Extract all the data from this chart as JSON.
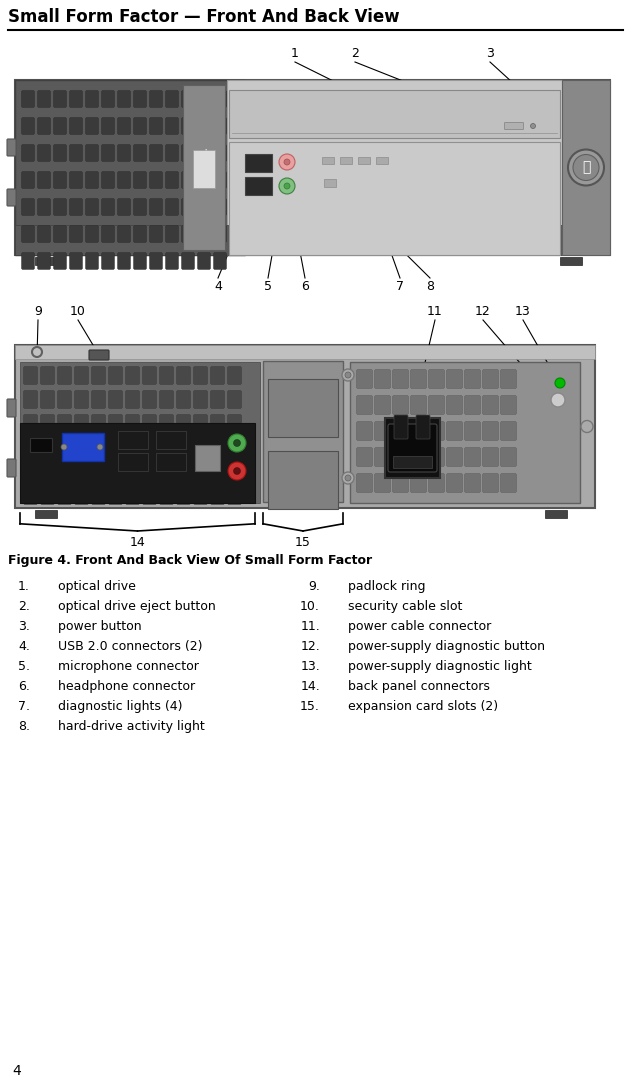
{
  "title": "Small Form Factor — Front And Back View",
  "title_fontsize": 12,
  "figure_caption": "Figure 4. Front And Back View Of Small Form Factor",
  "figure_caption_fontsize": 9,
  "page_number": "4",
  "list_items_left": [
    [
      "1.",
      "optical drive"
    ],
    [
      "2.",
      "optical drive eject button"
    ],
    [
      "3.",
      "power button"
    ],
    [
      "4.",
      "USB 2.0 connectors (2)"
    ],
    [
      "5.",
      "microphone connector"
    ],
    [
      "6.",
      "headphone connector"
    ],
    [
      "7.",
      "diagnostic lights (4)"
    ],
    [
      "8.",
      "hard-drive activity light"
    ]
  ],
  "list_items_right": [
    [
      "9.",
      "padlock ring"
    ],
    [
      "10.",
      "security cable slot"
    ],
    [
      "11.",
      "power cable connector"
    ],
    [
      "12.",
      "power-supply diagnostic button"
    ],
    [
      "13.",
      "power-supply diagnostic light"
    ],
    [
      "14.",
      "back panel connectors"
    ],
    [
      "15.",
      "expansion card slots (2)"
    ]
  ],
  "bg_color": "#ffffff",
  "text_color": "#000000",
  "list_fontsize": 9,
  "callout_fontsize": 9
}
